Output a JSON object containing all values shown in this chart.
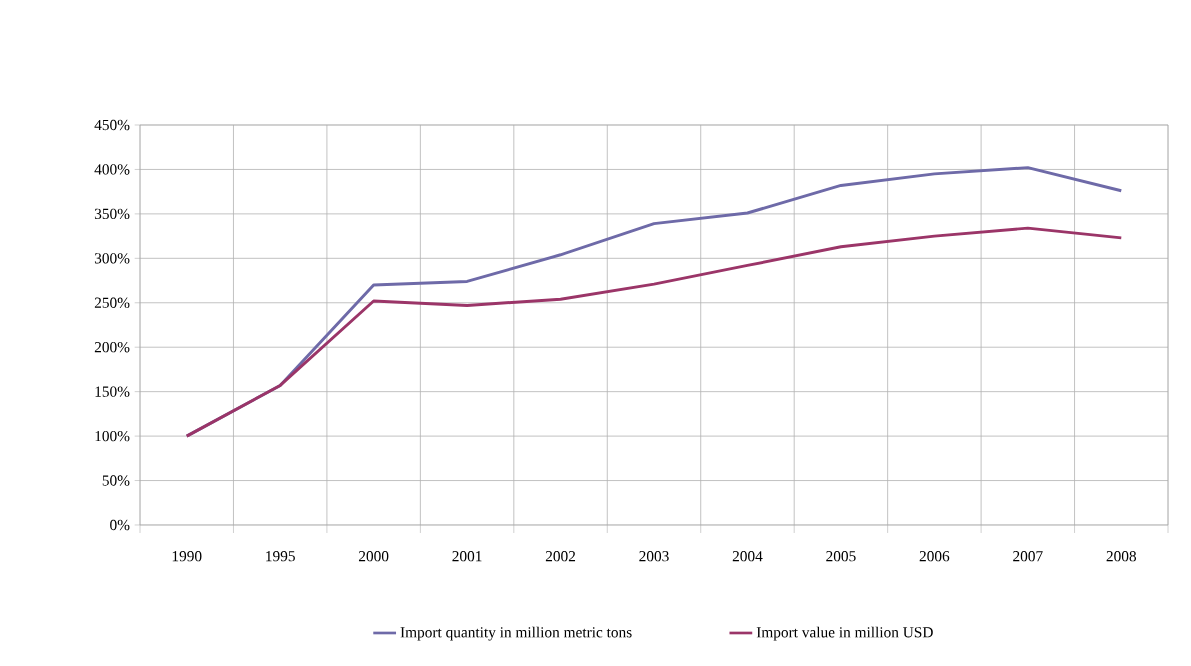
{
  "chart_data": {
    "type": "line",
    "categories": [
      "1990",
      "1995",
      "2000",
      "2001",
      "2002",
      "2003",
      "2004",
      "2005",
      "2006",
      "2007",
      "2008"
    ],
    "series": [
      {
        "name": "Import quantity in million metric tons",
        "color": "#6e6aa8",
        "values": [
          100,
          157,
          270,
          274,
          304,
          339,
          351,
          382,
          395,
          402,
          376
        ]
      },
      {
        "name": "Import value in million USD",
        "color": "#9b3568",
        "values": [
          100,
          157,
          252,
          247,
          254,
          271,
          292,
          313,
          325,
          334,
          323
        ]
      }
    ],
    "ylim": [
      0,
      450
    ],
    "yticks": [
      {
        "value": 0,
        "label": "0%"
      },
      {
        "value": 50,
        "label": "50%"
      },
      {
        "value": 100,
        "label": "100%"
      },
      {
        "value": 150,
        "label": "150%"
      },
      {
        "value": 200,
        "label": "200%"
      },
      {
        "value": 250,
        "label": "250%"
      },
      {
        "value": 300,
        "label": "300%"
      },
      {
        "value": 350,
        "label": "350%"
      },
      {
        "value": 400,
        "label": "400%"
      },
      {
        "value": 450,
        "label": "450%"
      }
    ],
    "grid": true,
    "legend": "bottom",
    "marker": "none",
    "line_style": "solid"
  }
}
